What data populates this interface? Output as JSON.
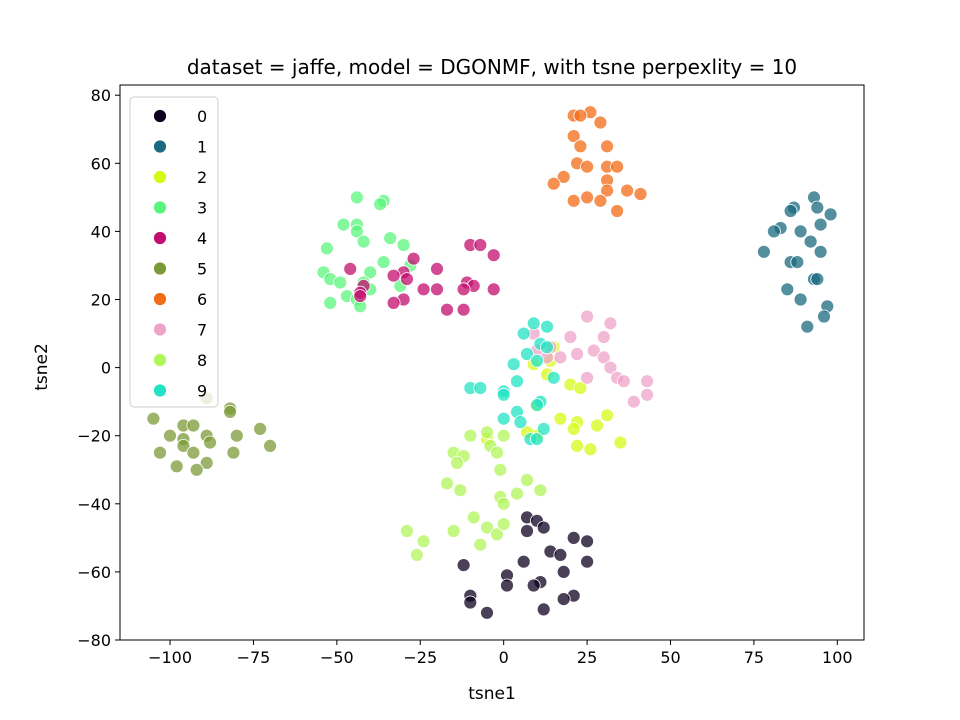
{
  "chart_data": {
    "type": "scatter",
    "title": "dataset = jaffe, model = DGONMF, with tsne perpexlity = 10",
    "xlabel": "tsne1",
    "ylabel": "tsne2",
    "xlim": [
      -115,
      108
    ],
    "ylim": [
      -80,
      83
    ],
    "xticks": [
      -100,
      -75,
      -50,
      -25,
      0,
      25,
      50,
      75,
      100
    ],
    "yticks": [
      -80,
      -60,
      -40,
      -20,
      0,
      20,
      40,
      60,
      80
    ],
    "grid": false,
    "legend_position": "top-left",
    "series": [
      {
        "name": "0",
        "color": "#0d0220",
        "points": [
          [
            7,
            -44
          ],
          [
            10,
            -45
          ],
          [
            12,
            -47
          ],
          [
            7,
            -48
          ],
          [
            21,
            -50
          ],
          [
            25,
            -51
          ],
          [
            14,
            -54
          ],
          [
            17,
            -55
          ],
          [
            6,
            -57
          ],
          [
            25,
            -57
          ],
          [
            -12,
            -58
          ],
          [
            1,
            -61
          ],
          [
            18,
            -60
          ],
          [
            11,
            -63
          ],
          [
            1,
            -64
          ],
          [
            9,
            -64
          ],
          [
            21,
            -67
          ],
          [
            18,
            -68
          ],
          [
            -10,
            -67
          ],
          [
            -10,
            -69
          ],
          [
            12,
            -71
          ],
          [
            -5,
            -72
          ]
        ]
      },
      {
        "name": "1",
        "color": "#1b6a7f",
        "points": [
          [
            93,
            50
          ],
          [
            94,
            47
          ],
          [
            87,
            47
          ],
          [
            86,
            46
          ],
          [
            98,
            45
          ],
          [
            95,
            42
          ],
          [
            83,
            41
          ],
          [
            81,
            40
          ],
          [
            89,
            40
          ],
          [
            92,
            37
          ],
          [
            78,
            34
          ],
          [
            95,
            34
          ],
          [
            86,
            31
          ],
          [
            88,
            31
          ],
          [
            93,
            26
          ],
          [
            94,
            26
          ],
          [
            85,
            23
          ],
          [
            97,
            18
          ],
          [
            89,
            20
          ],
          [
            96,
            15
          ],
          [
            91,
            12
          ]
        ]
      },
      {
        "name": "2",
        "color": "#d8f916",
        "points": [
          [
            15,
            6
          ],
          [
            9,
            1
          ],
          [
            14,
            2
          ],
          [
            13,
            -2
          ],
          [
            20,
            -5
          ],
          [
            23,
            -6
          ],
          [
            10,
            -11
          ],
          [
            17,
            -15
          ],
          [
            31,
            -14
          ],
          [
            22,
            -16
          ],
          [
            28,
            -17
          ],
          [
            10,
            -20
          ],
          [
            21,
            -18
          ],
          [
            35,
            -22
          ],
          [
            7,
            -19
          ],
          [
            -5,
            -21
          ],
          [
            22,
            -23
          ],
          [
            26,
            -24
          ]
        ]
      },
      {
        "name": "3",
        "color": "#59f57c",
        "points": [
          [
            -44,
            50
          ],
          [
            -36,
            49
          ],
          [
            -37,
            48
          ],
          [
            -44,
            42
          ],
          [
            -48,
            42
          ],
          [
            -44,
            40
          ],
          [
            -34,
            38
          ],
          [
            -42,
            37
          ],
          [
            -30,
            36
          ],
          [
            -53,
            35
          ],
          [
            -36,
            31
          ],
          [
            -28,
            30
          ],
          [
            -40,
            28
          ],
          [
            -54,
            28
          ],
          [
            -52,
            26
          ],
          [
            -49,
            25
          ],
          [
            -42,
            25
          ],
          [
            -40,
            23
          ],
          [
            -31,
            24
          ],
          [
            -47,
            21
          ],
          [
            -44,
            20
          ],
          [
            -52,
            19
          ],
          [
            -43,
            18
          ]
        ]
      },
      {
        "name": "4",
        "color": "#c20d6e",
        "points": [
          [
            -10,
            36
          ],
          [
            -7,
            36
          ],
          [
            -3,
            33
          ],
          [
            -27,
            32
          ],
          [
            -20,
            29
          ],
          [
            -46,
            29
          ],
          [
            -30,
            28
          ],
          [
            -33,
            27
          ],
          [
            -29,
            26
          ],
          [
            -11,
            25
          ],
          [
            -9,
            24
          ],
          [
            -42,
            24
          ],
          [
            -43,
            22
          ],
          [
            -24,
            23
          ],
          [
            -20,
            23
          ],
          [
            -12,
            23
          ],
          [
            -3,
            23
          ],
          [
            -43,
            21
          ],
          [
            -30,
            20
          ],
          [
            -33,
            19
          ],
          [
            -17,
            17
          ],
          [
            -12,
            17
          ]
        ]
      },
      {
        "name": "5",
        "color": "#7b9a37",
        "points": [
          [
            -89,
            -9
          ],
          [
            -82,
            -12
          ],
          [
            -82,
            -13
          ],
          [
            -105,
            -15
          ],
          [
            -96,
            -17
          ],
          [
            -93,
            -17
          ],
          [
            -73,
            -18
          ],
          [
            -100,
            -20
          ],
          [
            -89,
            -20
          ],
          [
            -96,
            -21
          ],
          [
            -80,
            -20
          ],
          [
            -88,
            -22
          ],
          [
            -96,
            -23
          ],
          [
            -70,
            -23
          ],
          [
            -103,
            -25
          ],
          [
            -93,
            -25
          ],
          [
            -81,
            -25
          ],
          [
            -89,
            -28
          ],
          [
            -98,
            -29
          ],
          [
            -92,
            -30
          ]
        ]
      },
      {
        "name": "6",
        "color": "#f26b15",
        "points": [
          [
            26,
            75
          ],
          [
            21,
            74
          ],
          [
            23,
            74
          ],
          [
            29,
            72
          ],
          [
            21,
            68
          ],
          [
            23,
            65
          ],
          [
            31,
            65
          ],
          [
            22,
            60
          ],
          [
            25,
            59
          ],
          [
            31,
            59
          ],
          [
            34,
            59
          ],
          [
            18,
            56
          ],
          [
            31,
            55
          ],
          [
            15,
            54
          ],
          [
            31,
            52
          ],
          [
            37,
            52
          ],
          [
            41,
            51
          ],
          [
            21,
            49
          ],
          [
            25,
            50
          ],
          [
            29,
            49
          ],
          [
            34,
            46
          ]
        ]
      },
      {
        "name": "7",
        "color": "#eea3c8",
        "points": [
          [
            25,
            15
          ],
          [
            32,
            13
          ],
          [
            9,
            10
          ],
          [
            20,
            9
          ],
          [
            30,
            9
          ],
          [
            14,
            6
          ],
          [
            27,
            5
          ],
          [
            10,
            5
          ],
          [
            30,
            3
          ],
          [
            17,
            3
          ],
          [
            22,
            4
          ],
          [
            13,
            3
          ],
          [
            32,
            0
          ],
          [
            34,
            -3
          ],
          [
            25,
            -3
          ],
          [
            43,
            -4
          ],
          [
            36,
            -4
          ],
          [
            43,
            -8
          ],
          [
            39,
            -10
          ]
        ]
      },
      {
        "name": "8",
        "color": "#b0f55a",
        "points": [
          [
            -10,
            -20
          ],
          [
            -5,
            -19
          ],
          [
            0,
            -20
          ],
          [
            -4,
            -23
          ],
          [
            -15,
            -25
          ],
          [
            -12,
            -26
          ],
          [
            -2,
            -25
          ],
          [
            -14,
            -28
          ],
          [
            -17,
            -34
          ],
          [
            -13,
            -36
          ],
          [
            -1,
            -30
          ],
          [
            7,
            -33
          ],
          [
            -1,
            -38
          ],
          [
            4,
            -37
          ],
          [
            11,
            -36
          ],
          [
            0,
            -40
          ],
          [
            -9,
            -44
          ],
          [
            -5,
            -47
          ],
          [
            -2,
            -49
          ],
          [
            -15,
            -48
          ],
          [
            0,
            -46
          ],
          [
            -29,
            -48
          ],
          [
            -24,
            -51
          ],
          [
            -7,
            -52
          ],
          [
            -26,
            -55
          ]
        ]
      },
      {
        "name": "9",
        "color": "#22e3c4",
        "points": [
          [
            9,
            13
          ],
          [
            13,
            12
          ],
          [
            6,
            10
          ],
          [
            11,
            7
          ],
          [
            13,
            6
          ],
          [
            7,
            4
          ],
          [
            10,
            2
          ],
          [
            3,
            1
          ],
          [
            15,
            -3
          ],
          [
            4,
            -4
          ],
          [
            -10,
            -6
          ],
          [
            -7,
            -6
          ],
          [
            0,
            -7
          ],
          [
            0,
            -8
          ],
          [
            11,
            -10
          ],
          [
            4,
            -13
          ],
          [
            10,
            -11
          ],
          [
            0,
            -15
          ],
          [
            5,
            -16
          ],
          [
            12,
            -18
          ],
          [
            8,
            -21
          ],
          [
            10,
            -21
          ]
        ]
      }
    ]
  }
}
